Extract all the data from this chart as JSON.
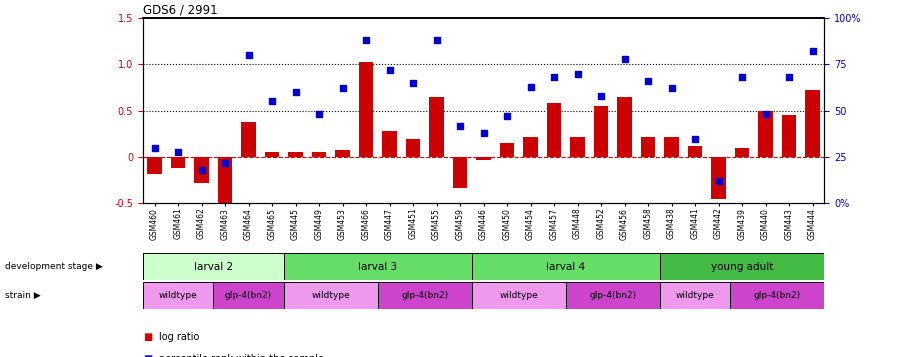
{
  "title": "GDS6 / 2991",
  "samples": [
    "GSM460",
    "GSM461",
    "GSM462",
    "GSM463",
    "GSM464",
    "GSM465",
    "GSM445",
    "GSM449",
    "GSM453",
    "GSM466",
    "GSM447",
    "GSM451",
    "GSM455",
    "GSM459",
    "GSM446",
    "GSM450",
    "GSM454",
    "GSM457",
    "GSM448",
    "GSM452",
    "GSM456",
    "GSM458",
    "GSM438",
    "GSM441",
    "GSM442",
    "GSM439",
    "GSM440",
    "GSM443",
    "GSM444"
  ],
  "log_ratio": [
    -0.18,
    -0.12,
    -0.28,
    -0.55,
    0.38,
    0.05,
    0.05,
    0.05,
    0.08,
    1.02,
    0.28,
    0.2,
    0.65,
    -0.33,
    -0.03,
    0.15,
    0.22,
    0.58,
    0.22,
    0.55,
    0.65,
    0.22,
    0.22,
    0.12,
    -0.45,
    0.1,
    0.5,
    0.45,
    0.72
  ],
  "percentile": [
    30,
    28,
    18,
    22,
    80,
    55,
    60,
    48,
    62,
    88,
    72,
    65,
    88,
    42,
    38,
    47,
    63,
    68,
    70,
    58,
    78,
    66,
    62,
    35,
    12,
    68,
    48,
    68,
    82
  ],
  "bar_color": "#cc0000",
  "dot_color": "#0000cc",
  "dev_stages": [
    {
      "label": "larval 2",
      "start": 0,
      "end": 6,
      "color": "#ccffcc"
    },
    {
      "label": "larval 3",
      "start": 6,
      "end": 14,
      "color": "#66dd66"
    },
    {
      "label": "larval 4",
      "start": 14,
      "end": 22,
      "color": "#66dd66"
    },
    {
      "label": "young adult",
      "start": 22,
      "end": 29,
      "color": "#44bb44"
    }
  ],
  "strains": [
    {
      "label": "wildtype",
      "start": 0,
      "end": 3,
      "color": "#ee99ee"
    },
    {
      "label": "glp-4(bn2)",
      "start": 3,
      "end": 6,
      "color": "#cc44cc"
    },
    {
      "label": "wildtype",
      "start": 6,
      "end": 10,
      "color": "#ee99ee"
    },
    {
      "label": "glp-4(bn2)",
      "start": 10,
      "end": 14,
      "color": "#cc44cc"
    },
    {
      "label": "wildtype",
      "start": 14,
      "end": 18,
      "color": "#ee99ee"
    },
    {
      "label": "glp-4(bn2)",
      "start": 18,
      "end": 22,
      "color": "#cc44cc"
    },
    {
      "label": "wildtype",
      "start": 22,
      "end": 25,
      "color": "#ee99ee"
    },
    {
      "label": "glp-4(bn2)",
      "start": 25,
      "end": 29,
      "color": "#cc44cc"
    }
  ]
}
